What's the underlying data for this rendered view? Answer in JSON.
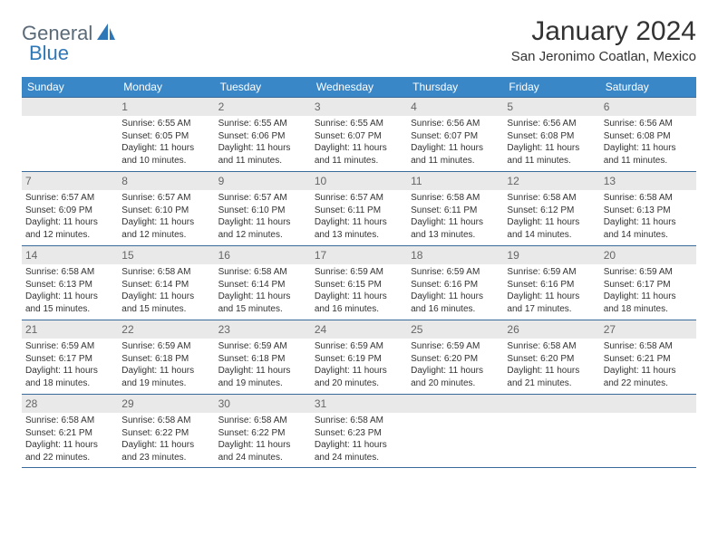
{
  "brand": {
    "part1": "General",
    "part2": "Blue"
  },
  "title": "January 2024",
  "location": "San Jeronimo Coatlan, Mexico",
  "colors": {
    "header_bg": "#3a87c7",
    "header_text": "#ffffff",
    "row_border": "#3a6a9a",
    "daynum_bg": "#e9e9e9",
    "daynum_text": "#666666",
    "body_text": "#333333",
    "logo_gray": "#5a6a78",
    "logo_blue": "#2f78b8"
  },
  "typography": {
    "title_fontsize": 30,
    "location_fontsize": 15,
    "dow_fontsize": 12,
    "daynum_fontsize": 12,
    "detail_fontsize": 10
  },
  "days_of_week": [
    "Sunday",
    "Monday",
    "Tuesday",
    "Wednesday",
    "Thursday",
    "Friday",
    "Saturday"
  ],
  "first_weekday_offset": 1,
  "days": [
    {
      "n": 1,
      "sunrise": "6:55 AM",
      "sunset": "6:05 PM",
      "daylight": "11 hours and 10 minutes."
    },
    {
      "n": 2,
      "sunrise": "6:55 AM",
      "sunset": "6:06 PM",
      "daylight": "11 hours and 11 minutes."
    },
    {
      "n": 3,
      "sunrise": "6:55 AM",
      "sunset": "6:07 PM",
      "daylight": "11 hours and 11 minutes."
    },
    {
      "n": 4,
      "sunrise": "6:56 AM",
      "sunset": "6:07 PM",
      "daylight": "11 hours and 11 minutes."
    },
    {
      "n": 5,
      "sunrise": "6:56 AM",
      "sunset": "6:08 PM",
      "daylight": "11 hours and 11 minutes."
    },
    {
      "n": 6,
      "sunrise": "6:56 AM",
      "sunset": "6:08 PM",
      "daylight": "11 hours and 11 minutes."
    },
    {
      "n": 7,
      "sunrise": "6:57 AM",
      "sunset": "6:09 PM",
      "daylight": "11 hours and 12 minutes."
    },
    {
      "n": 8,
      "sunrise": "6:57 AM",
      "sunset": "6:10 PM",
      "daylight": "11 hours and 12 minutes."
    },
    {
      "n": 9,
      "sunrise": "6:57 AM",
      "sunset": "6:10 PM",
      "daylight": "11 hours and 12 minutes."
    },
    {
      "n": 10,
      "sunrise": "6:57 AM",
      "sunset": "6:11 PM",
      "daylight": "11 hours and 13 minutes."
    },
    {
      "n": 11,
      "sunrise": "6:58 AM",
      "sunset": "6:11 PM",
      "daylight": "11 hours and 13 minutes."
    },
    {
      "n": 12,
      "sunrise": "6:58 AM",
      "sunset": "6:12 PM",
      "daylight": "11 hours and 14 minutes."
    },
    {
      "n": 13,
      "sunrise": "6:58 AM",
      "sunset": "6:13 PM",
      "daylight": "11 hours and 14 minutes."
    },
    {
      "n": 14,
      "sunrise": "6:58 AM",
      "sunset": "6:13 PM",
      "daylight": "11 hours and 15 minutes."
    },
    {
      "n": 15,
      "sunrise": "6:58 AM",
      "sunset": "6:14 PM",
      "daylight": "11 hours and 15 minutes."
    },
    {
      "n": 16,
      "sunrise": "6:58 AM",
      "sunset": "6:14 PM",
      "daylight": "11 hours and 15 minutes."
    },
    {
      "n": 17,
      "sunrise": "6:59 AM",
      "sunset": "6:15 PM",
      "daylight": "11 hours and 16 minutes."
    },
    {
      "n": 18,
      "sunrise": "6:59 AM",
      "sunset": "6:16 PM",
      "daylight": "11 hours and 16 minutes."
    },
    {
      "n": 19,
      "sunrise": "6:59 AM",
      "sunset": "6:16 PM",
      "daylight": "11 hours and 17 minutes."
    },
    {
      "n": 20,
      "sunrise": "6:59 AM",
      "sunset": "6:17 PM",
      "daylight": "11 hours and 18 minutes."
    },
    {
      "n": 21,
      "sunrise": "6:59 AM",
      "sunset": "6:17 PM",
      "daylight": "11 hours and 18 minutes."
    },
    {
      "n": 22,
      "sunrise": "6:59 AM",
      "sunset": "6:18 PM",
      "daylight": "11 hours and 19 minutes."
    },
    {
      "n": 23,
      "sunrise": "6:59 AM",
      "sunset": "6:18 PM",
      "daylight": "11 hours and 19 minutes."
    },
    {
      "n": 24,
      "sunrise": "6:59 AM",
      "sunset": "6:19 PM",
      "daylight": "11 hours and 20 minutes."
    },
    {
      "n": 25,
      "sunrise": "6:59 AM",
      "sunset": "6:20 PM",
      "daylight": "11 hours and 20 minutes."
    },
    {
      "n": 26,
      "sunrise": "6:58 AM",
      "sunset": "6:20 PM",
      "daylight": "11 hours and 21 minutes."
    },
    {
      "n": 27,
      "sunrise": "6:58 AM",
      "sunset": "6:21 PM",
      "daylight": "11 hours and 22 minutes."
    },
    {
      "n": 28,
      "sunrise": "6:58 AM",
      "sunset": "6:21 PM",
      "daylight": "11 hours and 22 minutes."
    },
    {
      "n": 29,
      "sunrise": "6:58 AM",
      "sunset": "6:22 PM",
      "daylight": "11 hours and 23 minutes."
    },
    {
      "n": 30,
      "sunrise": "6:58 AM",
      "sunset": "6:22 PM",
      "daylight": "11 hours and 24 minutes."
    },
    {
      "n": 31,
      "sunrise": "6:58 AM",
      "sunset": "6:23 PM",
      "daylight": "11 hours and 24 minutes."
    }
  ],
  "labels": {
    "sunrise": "Sunrise:",
    "sunset": "Sunset:",
    "daylight": "Daylight:"
  }
}
